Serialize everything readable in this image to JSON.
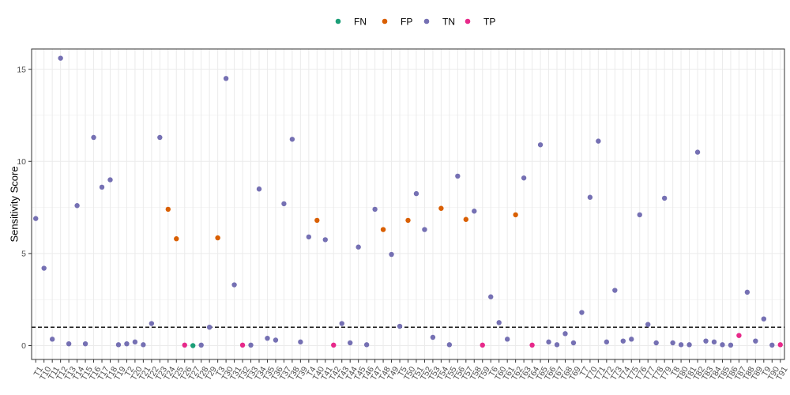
{
  "chart_data": {
    "type": "scatter",
    "ylabel": "Sensitivity Score",
    "xlabel": "",
    "ylim": [
      -0.75,
      16.1
    ],
    "yticks": [
      0,
      5,
      10,
      15
    ],
    "threshold": 1,
    "grid": true,
    "legend_position": "top",
    "legend": [
      {
        "name": "FN",
        "color": "#1b9e77"
      },
      {
        "name": "FP",
        "color": "#d95f02"
      },
      {
        "name": "TN",
        "color": "#7570b3"
      },
      {
        "name": "TP",
        "color": "#e7298a"
      }
    ],
    "categories": [
      "T1",
      "T10",
      "T11",
      "T12",
      "T13",
      "T14",
      "T15",
      "T16",
      "T17",
      "T18",
      "T19",
      "T2",
      "T20",
      "T21",
      "T22",
      "T23",
      "T24",
      "T25",
      "T26",
      "T27",
      "T28",
      "T29",
      "T3",
      "T30",
      "T31",
      "T32",
      "T33",
      "T34",
      "T35",
      "T36",
      "T37",
      "T38",
      "T39",
      "T4",
      "T40",
      "T41",
      "T42",
      "T43",
      "T44",
      "T45",
      "T46",
      "T47",
      "T48",
      "T49",
      "T5",
      "T50",
      "T51",
      "T52",
      "T53",
      "T54",
      "T55",
      "T56",
      "T57",
      "T58",
      "T59",
      "T6",
      "T60",
      "T61",
      "T62",
      "T63",
      "T64",
      "T65",
      "T66",
      "T67",
      "T68",
      "T69",
      "T7",
      "T70",
      "T71",
      "T72",
      "T73",
      "T74",
      "T75",
      "T76",
      "T77",
      "T78",
      "T79",
      "T8",
      "T80",
      "T81",
      "T82",
      "T83",
      "T84",
      "T85",
      "T86",
      "T87",
      "T88",
      "T89",
      "T9",
      "T90",
      "T91"
    ],
    "values": [
      6.9,
      4.2,
      0.35,
      15.6,
      0.1,
      7.6,
      0.1,
      11.3,
      8.6,
      9.0,
      0.05,
      0.1,
      0.2,
      0.05,
      1.2,
      11.3,
      7.4,
      5.8,
      0.03,
      0.0,
      0.03,
      1.0,
      5.85,
      14.5,
      3.3,
      0.03,
      0.03,
      8.5,
      0.4,
      0.3,
      7.7,
      11.2,
      0.2,
      5.9,
      6.8,
      5.75,
      0.03,
      1.2,
      0.15,
      5.35,
      0.05,
      7.4,
      6.3,
      4.95,
      1.05,
      6.8,
      8.25,
      6.3,
      0.45,
      7.45,
      0.05,
      9.2,
      6.85,
      7.3,
      0.03,
      2.65,
      1.25,
      0.35,
      7.1,
      9.1,
      0.03,
      10.9,
      0.2,
      0.05,
      0.65,
      0.15,
      1.8,
      8.05,
      11.1,
      0.2,
      3.0,
      0.25,
      0.35,
      7.1,
      1.15,
      0.15,
      8.0,
      0.15,
      0.05,
      0.05,
      10.5,
      0.25,
      0.2,
      0.05,
      0.03,
      0.55,
      2.9,
      0.25,
      1.45,
      0.03,
      0.05
    ],
    "classes": [
      "TN",
      "TN",
      "TN",
      "TN",
      "TN",
      "TN",
      "TN",
      "TN",
      "TN",
      "TN",
      "TN",
      "TN",
      "TN",
      "TN",
      "TN",
      "TN",
      "FP",
      "FP",
      "TP",
      "FN",
      "TN",
      "TN",
      "FP",
      "TN",
      "TN",
      "TP",
      "TN",
      "TN",
      "TN",
      "TN",
      "TN",
      "TN",
      "TN",
      "TN",
      "FP",
      "TN",
      "TP",
      "TN",
      "TN",
      "TN",
      "TN",
      "TN",
      "FP",
      "TN",
      "TN",
      "FP",
      "TN",
      "TN",
      "TN",
      "FP",
      "TN",
      "TN",
      "FP",
      "TN",
      "TP",
      "TN",
      "TN",
      "TN",
      "FP",
      "TN",
      "TP",
      "TN",
      "TN",
      "TN",
      "TN",
      "TN",
      "TN",
      "TN",
      "TN",
      "TN",
      "TN",
      "TN",
      "TN",
      "TN",
      "TN",
      "TN",
      "TN",
      "TN",
      "TN",
      "TN",
      "TN",
      "TN",
      "TN",
      "TN",
      "TN",
      "TP",
      "TN",
      "TN",
      "TN",
      "TN",
      "TP"
    ]
  }
}
